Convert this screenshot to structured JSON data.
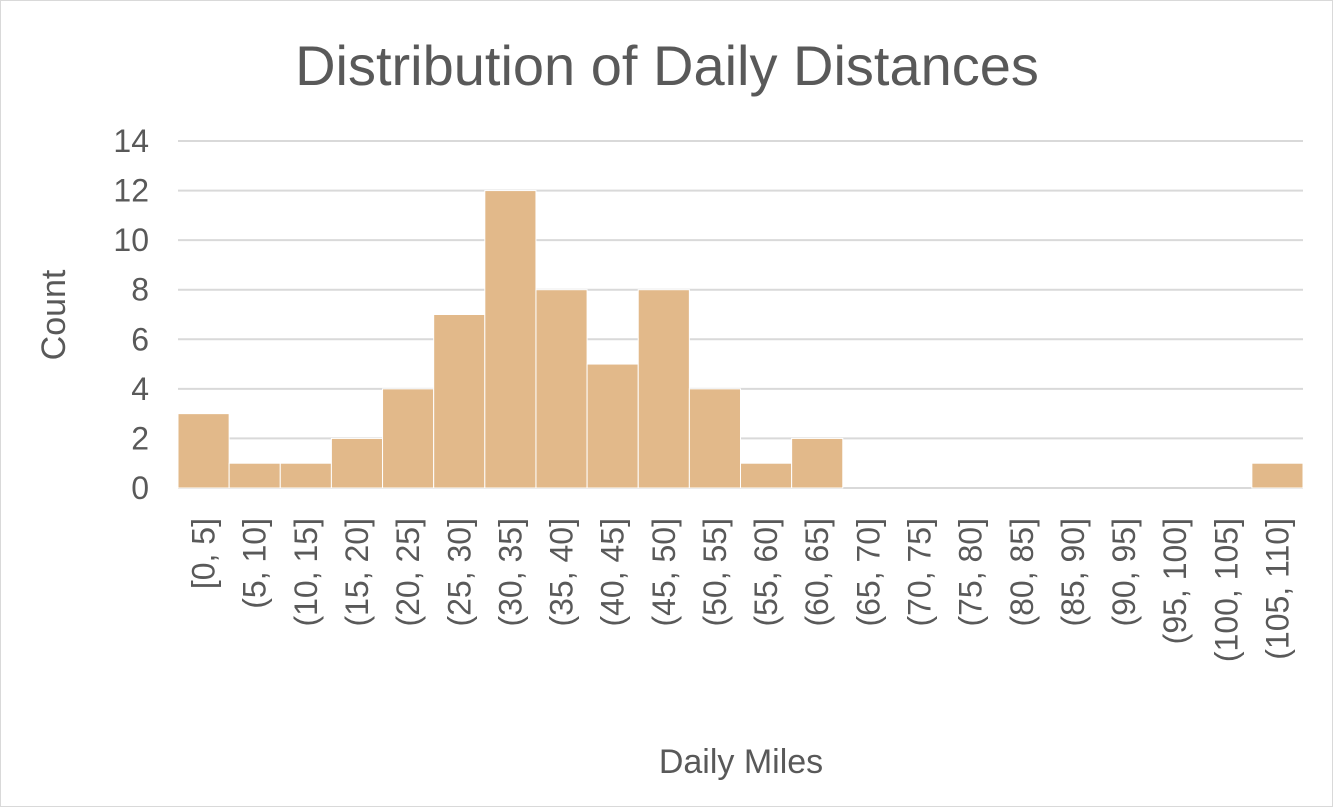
{
  "chart_data": {
    "type": "bar",
    "title": "Distribution of Daily Distances",
    "xlabel": "Daily Miles",
    "ylabel": "Count",
    "categories": [
      "[0, 5]",
      "(5, 10]",
      "(10, 15]",
      "(15, 20]",
      "(20, 25]",
      "(25, 30]",
      "(30, 35]",
      "(35, 40]",
      "(40, 45]",
      "(45, 50]",
      "(50, 55]",
      "(55, 60]",
      "(60, 65]",
      "(65, 70]",
      "(70, 75]",
      "(75, 80]",
      "(80, 85]",
      "(85, 90]",
      "(90, 95]",
      "(95, 100]",
      "(100, 105]",
      "(105, 110]"
    ],
    "values": [
      3,
      1,
      1,
      2,
      4,
      7,
      12,
      8,
      5,
      8,
      4,
      1,
      2,
      0,
      0,
      0,
      0,
      0,
      0,
      0,
      0,
      1
    ],
    "ylim": [
      0,
      14
    ],
    "yticks": [
      0,
      2,
      4,
      6,
      8,
      10,
      12,
      14
    ],
    "grid": true,
    "legend": "none",
    "bar_color": "#e2b98a",
    "gridline_color": "#d9d9d9",
    "text_color": "#595959"
  }
}
